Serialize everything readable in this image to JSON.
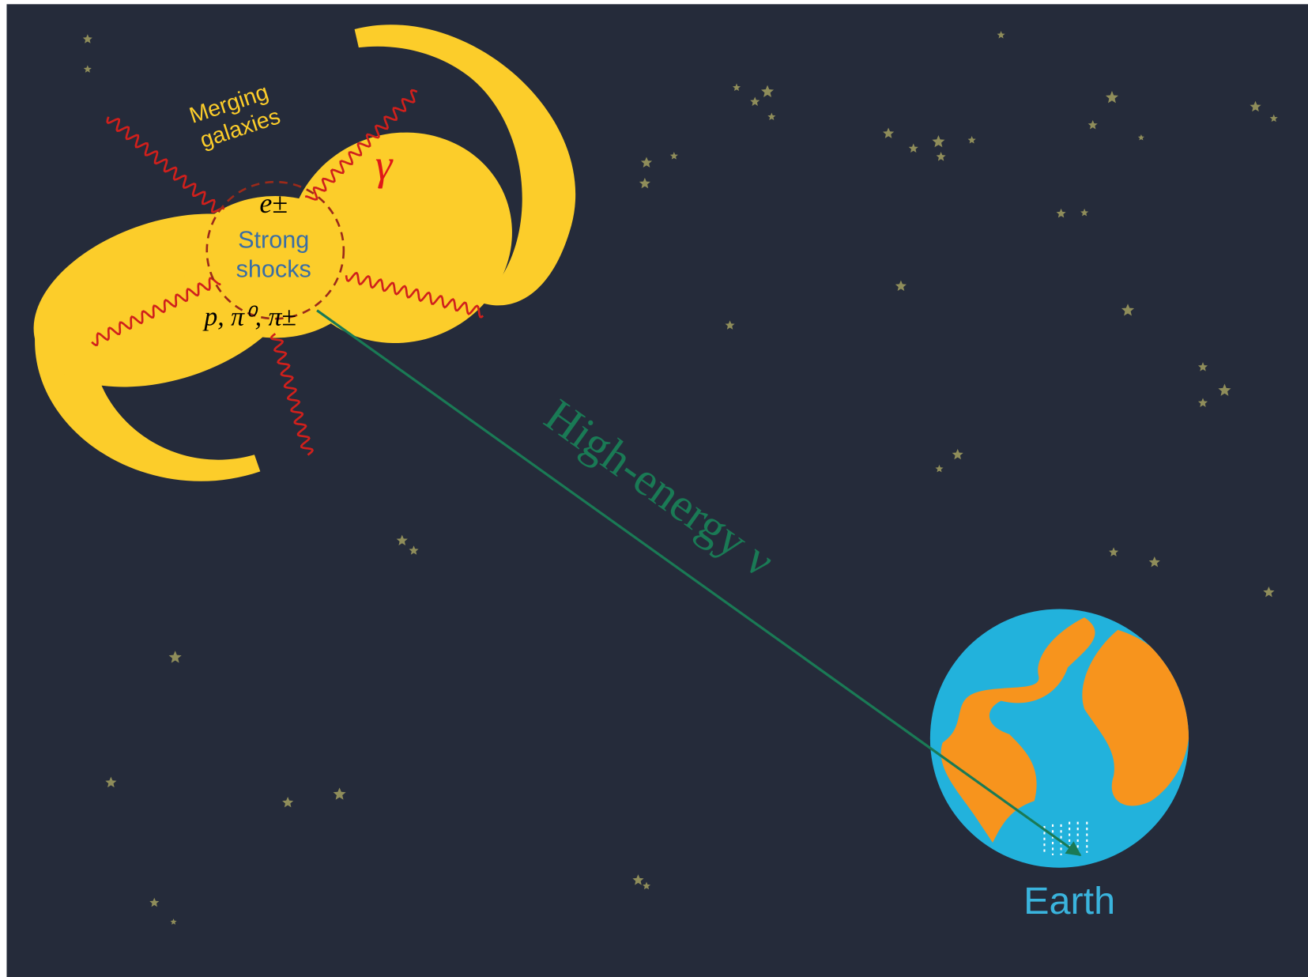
{
  "source_label": [
    "Merging",
    "galaxies"
  ],
  "photon_label": "γ",
  "electron_label": "e±",
  "shock_label": [
    "Strong",
    "shocks"
  ],
  "particle_label": "p, π⁰, π±",
  "neutrino_label": "High-energy ν",
  "earth_label": "Earth"
}
